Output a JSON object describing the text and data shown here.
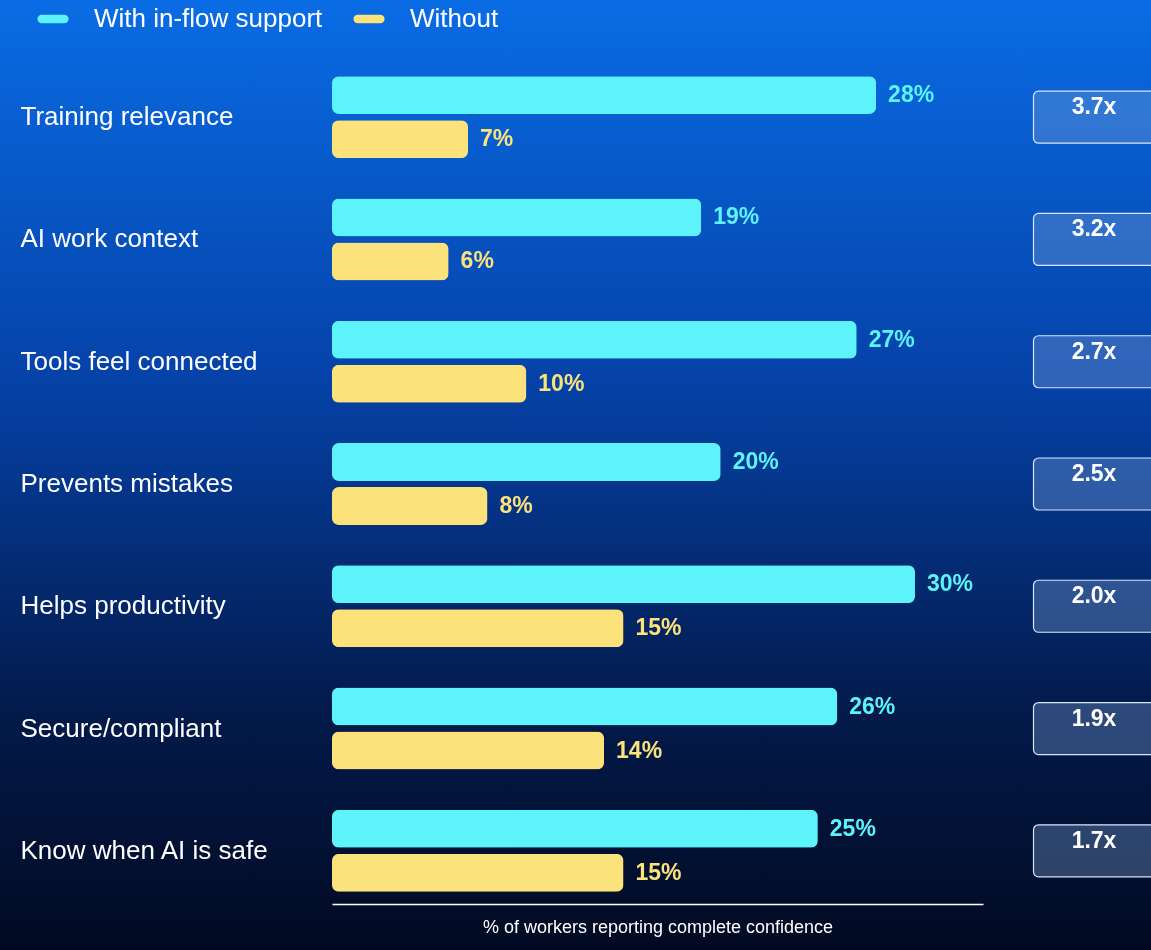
{
  "chart_data": {
    "type": "bar",
    "orientation": "horizontal",
    "xlabel": "% of workers reporting complete confidence",
    "categories": [
      "Training relevance",
      "AI work context",
      "Tools feel connected",
      "Prevents mistakes",
      "Helps productivity",
      "Secure/compliant",
      "Know when AI is safe"
    ],
    "series": [
      {
        "name": "With in-flow support",
        "color": "#5cf3fb",
        "values": [
          28,
          19,
          27,
          20,
          30,
          26,
          25
        ],
        "value_labels": [
          "28%",
          "19%",
          "27%",
          "20%",
          "30%",
          "26%",
          "25%"
        ]
      },
      {
        "name": "Without",
        "color": "#fbe27a",
        "values": [
          7,
          6,
          10,
          8,
          15,
          14,
          15
        ],
        "value_labels": [
          "7%",
          "6%",
          "10%",
          "8%",
          "15%",
          "14%",
          "15%"
        ]
      }
    ],
    "xlim": [
      0,
      33.5
    ],
    "legend": "top left",
    "annotations": [
      "3.7x",
      "3.2x",
      "2.7x",
      "2.5x",
      "2.0x",
      "1.9x",
      "1.7x"
    ]
  }
}
